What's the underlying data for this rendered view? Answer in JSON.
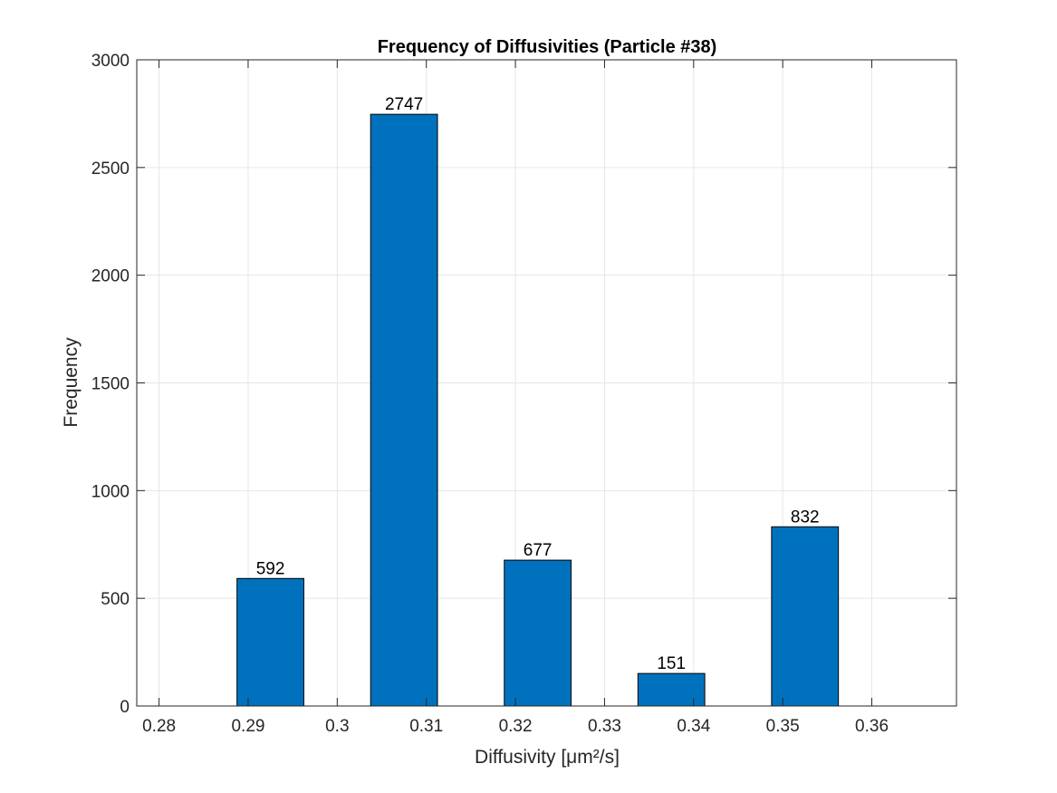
{
  "chart_data": {
    "type": "bar",
    "title": "Frequency of Diffusivities (Particle #38)",
    "xlabel": "Diffusivity [μm²/s]",
    "ylabel": "Frequency",
    "bin_centers": [
      0.2925,
      0.3075,
      0.3225,
      0.3375,
      0.3525
    ],
    "values": [
      592,
      2747,
      677,
      151,
      832
    ],
    "value_labels": [
      "592",
      "2747",
      "677",
      "151",
      "832"
    ],
    "bin_width": 0.0075,
    "xlim": [
      0.2775,
      0.3695
    ],
    "ylim": [
      0,
      3000
    ],
    "x_ticks": [
      0.28,
      0.29,
      0.3,
      0.31,
      0.32,
      0.33,
      0.34,
      0.35,
      0.36
    ],
    "x_tick_labels": [
      "0.28",
      "0.29",
      "0.3",
      "0.31",
      "0.32",
      "0.33",
      "0.34",
      "0.35",
      "0.36"
    ],
    "y_ticks": [
      0,
      500,
      1000,
      1500,
      2000,
      2500,
      3000
    ],
    "y_tick_labels": [
      "0",
      "500",
      "1000",
      "1500",
      "2000",
      "2500",
      "3000"
    ],
    "grid": true,
    "colors": {
      "bar": "#0072BD",
      "bar_edge": "#000000",
      "grid": "#e6e6e6",
      "axis": "#262626"
    }
  }
}
